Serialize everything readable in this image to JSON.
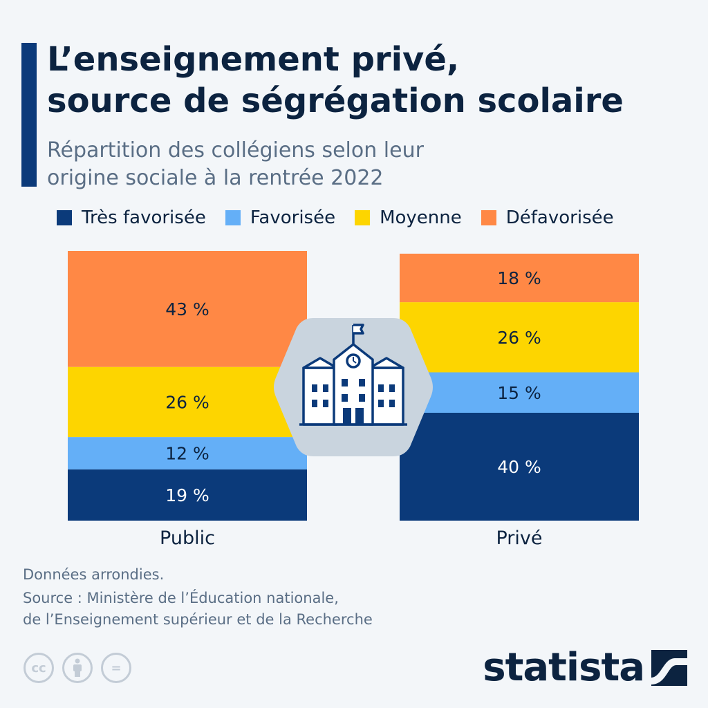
{
  "header": {
    "title_line1": "L’enseignement privé,",
    "title_line2": "source de ségrégation scolaire",
    "subtitle_line1": "Répartition des collégiens selon leur",
    "subtitle_line2": "origine sociale à la rentrée 2022"
  },
  "colors": {
    "accent": "#0b3a7a",
    "tres_favorisee": "#0b3a7a",
    "favorisee": "#64aff7",
    "moyenne": "#fdd500",
    "defavorisee": "#ff8845",
    "value_label": "#0c2340",
    "value_label_dark_bg": "#ffffff"
  },
  "legend": [
    {
      "label": "Très favorisée",
      "color": "#0b3a7a"
    },
    {
      "label": "Favorisée",
      "color": "#64aff7"
    },
    {
      "label": "Moyenne",
      "color": "#fdd500"
    },
    {
      "label": "Défavorisée",
      "color": "#ff8845"
    }
  ],
  "chart_data": {
    "type": "bar",
    "stacked": true,
    "categories": [
      "Public",
      "Privé"
    ],
    "series": [
      {
        "name": "Très favorisée",
        "values": [
          19,
          40
        ],
        "color": "#0b3a7a"
      },
      {
        "name": "Favorisée",
        "values": [
          12,
          15
        ],
        "color": "#64aff7"
      },
      {
        "name": "Moyenne",
        "values": [
          26,
          26
        ],
        "color": "#fdd500"
      },
      {
        "name": "Défavorisée",
        "values": [
          43,
          18
        ],
        "color": "#ff8845"
      }
    ],
    "value_labels": [
      [
        "19 %",
        "40 %"
      ],
      [
        "12 %",
        "15 %"
      ],
      [
        "26 %",
        "26 %"
      ],
      [
        "43 %",
        "18 %"
      ]
    ],
    "legend_position": "top",
    "grid": false
  },
  "center_icon": "school-building-icon",
  "footer": {
    "note": "Données arrondies.",
    "source_line1": "Source : Ministère de l’Éducation nationale,",
    "source_line2": "de l’Enseignement supérieur et de la Recherche"
  },
  "license_icons": [
    "cc-icon",
    "attribution-icon",
    "no-derivatives-icon"
  ],
  "license_glyphs": [
    "cc",
    "=",
    ""
  ],
  "brand": {
    "name": "statista"
  }
}
